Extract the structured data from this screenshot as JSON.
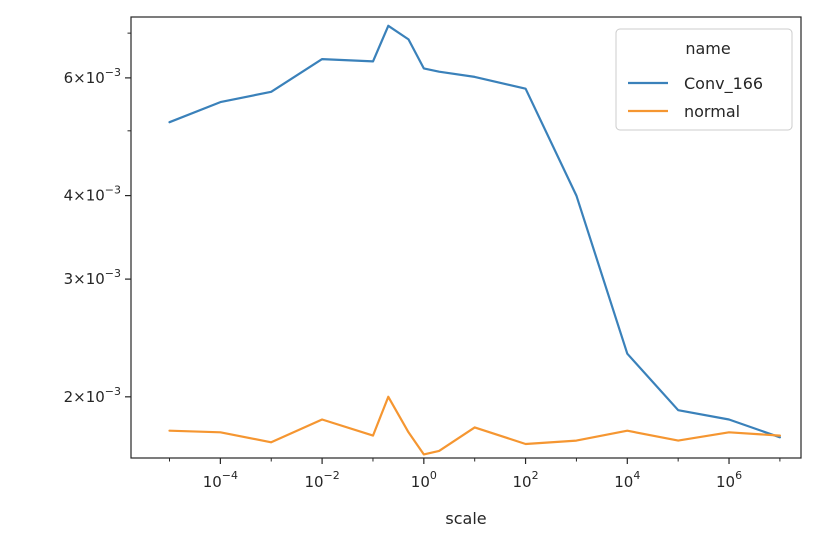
{
  "chart_data": {
    "type": "line",
    "xlabel": "scale",
    "ylabel": "",
    "x_scale": "log",
    "y_scale": "log",
    "xlim": [
      1.75e-06,
      26000000.0
    ],
    "ylim": [
      0.00162,
      0.0074
    ],
    "x_ticks": [
      {
        "value": 0.0001,
        "base": "10",
        "exp": "−4"
      },
      {
        "value": 0.01,
        "base": "10",
        "exp": "−2"
      },
      {
        "value": 1,
        "base": "10",
        "exp": "0"
      },
      {
        "value": 100,
        "base": "10",
        "exp": "2"
      },
      {
        "value": 10000,
        "base": "10",
        "exp": "4"
      },
      {
        "value": 1000000,
        "base": "10",
        "exp": "6"
      }
    ],
    "y_ticks": [
      {
        "value": 0.002,
        "mant": "2",
        "base": "×10",
        "exp": "−3"
      },
      {
        "value": 0.003,
        "mant": "3",
        "base": "×10",
        "exp": "−3"
      },
      {
        "value": 0.004,
        "mant": "4",
        "base": "×10",
        "exp": "−3"
      },
      {
        "value": 0.006,
        "mant": "6",
        "base": "×10",
        "exp": "−3"
      }
    ],
    "y_minor_ticks": [
      0.005,
      0.007
    ],
    "legend": {
      "title": "name",
      "position": "top-right"
    },
    "series": [
      {
        "name": "Conv_166",
        "color": "#3a81ba",
        "x": [
          1e-05,
          0.0001,
          0.001,
          0.01,
          0.1,
          0.2,
          0.5,
          1,
          2,
          10,
          100,
          1000,
          10000,
          100000,
          1000000,
          10000000
        ],
        "y": [
          0.00515,
          0.00552,
          0.00572,
          0.0064,
          0.00635,
          0.00718,
          0.00685,
          0.0062,
          0.00613,
          0.00602,
          0.00578,
          0.004,
          0.00232,
          0.00191,
          0.00185,
          0.00174
        ]
      },
      {
        "name": "normal",
        "color": "#f59631",
        "x": [
          1e-05,
          0.0001,
          0.001,
          0.01,
          0.1,
          0.2,
          0.5,
          1,
          2,
          10,
          100,
          1000,
          10000,
          100000,
          1000000,
          10000000
        ],
        "y": [
          0.00178,
          0.00177,
          0.00171,
          0.00185,
          0.00175,
          0.002,
          0.00177,
          0.00164,
          0.00166,
          0.0018,
          0.0017,
          0.00172,
          0.00178,
          0.00172,
          0.00177,
          0.00175
        ]
      }
    ]
  }
}
